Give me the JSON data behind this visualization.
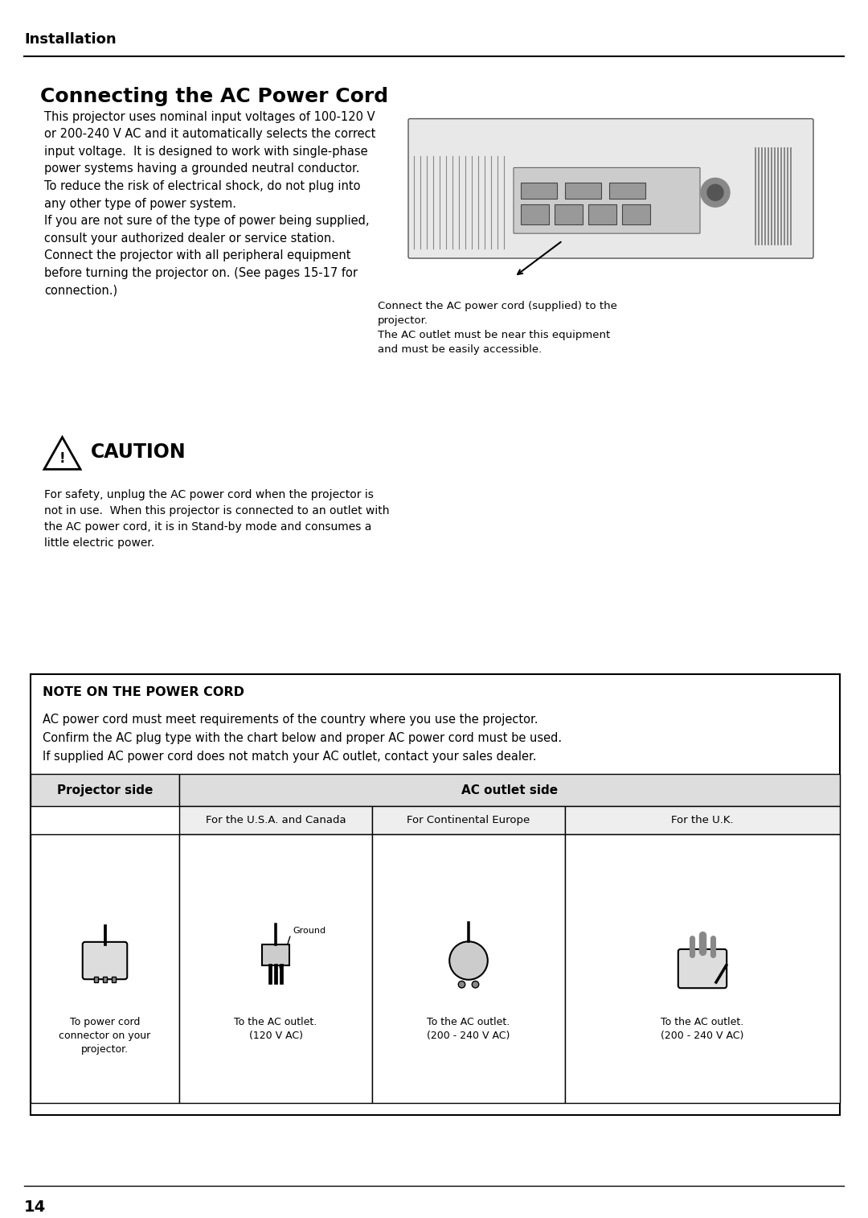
{
  "bg_color": "#ffffff",
  "page_number": "14",
  "section_title": "Installation",
  "title": "Connecting the AC Power Cord",
  "body_text_left": "This projector uses nominal input voltages of 100-120 V\nor 200-240 V AC and it automatically selects the correct\ninput voltage.  It is designed to work with single-phase\npower systems having a grounded neutral conductor.\nTo reduce the risk of electrical shock, do not plug into\nany other type of power system.\nIf you are not sure of the type of power being supplied,\nconsult your authorized dealer or service station.\nConnect the projector with all peripheral equipment\nbefore turning the projector on. (See pages 15-17 for\nconnection.)",
  "image_caption": "Connect the AC power cord (supplied) to the\nprojector.\nThe AC outlet must be near this equipment\nand must be easily accessible.",
  "caution_title": "CAUTION",
  "caution_text": "For safety, unplug the AC power cord when the projector is\nnot in use.  When this projector is connected to an outlet with\nthe AC power cord, it is in Stand-by mode and consumes a\nlittle electric power.",
  "note_title": "NOTE ON THE POWER CORD",
  "note_text1": "AC power cord must meet requirements of the country where you use the projector.",
  "note_text2": "Confirm the AC plug type with the chart below and proper AC power cord must be used.",
  "note_text3": "If supplied AC power cord does not match your AC outlet, contact your sales dealer.",
  "table_header_left": "Projector side",
  "table_header_right": "AC outlet side",
  "col1_header": "For the U.S.A. and Canada",
  "col2_header": "For Continental Europe",
  "col3_header": "For the U.K.",
  "proj_label": "To power cord\nconnector on your\nprojector.",
  "col1_label": "To the AC outlet.\n(120 V AC)",
  "col2_label": "To the AC outlet.\n(200 - 240 V AC)",
  "col3_label": "To the AC outlet.\n(200 - 240 V AC)"
}
